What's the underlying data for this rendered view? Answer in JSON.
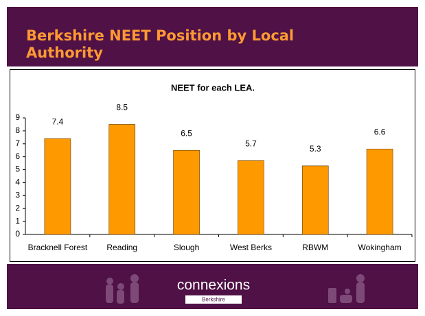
{
  "slide_title": "Berkshire NEET Position by Local Authority",
  "chart_data": {
    "type": "bar",
    "title": "NEET for each LEA.",
    "categories": [
      "Bracknell Forest",
      "Reading",
      "Slough",
      "West Berks",
      "RBWM",
      "Wokingham"
    ],
    "values": [
      7.4,
      8.5,
      6.5,
      5.7,
      5.3,
      6.6
    ],
    "color": "#ff9900",
    "ylim": [
      0,
      9
    ],
    "yticks": [
      0,
      1,
      2,
      3,
      4,
      5,
      6,
      7,
      8,
      9
    ],
    "grid": false
  },
  "footer": {
    "logo": "connexions",
    "region": "Berkshire"
  }
}
